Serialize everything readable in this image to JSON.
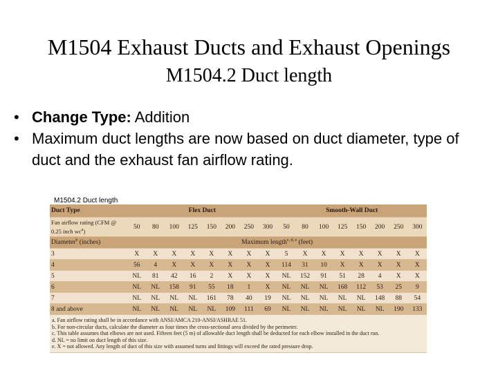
{
  "title": "M1504 Exhaust Ducts and Exhaust Openings",
  "subtitle": "M1504.2  Duct length",
  "bullets": [
    {
      "label": "Change Type:",
      "text": " Addition"
    },
    {
      "text": "Maximum duct lengths are now based on duct diameter, type of duct and the exhaust fan airflow rating."
    }
  ],
  "table": {
    "caption": "M1504.2 Duct length",
    "duct_type": "Duct Type",
    "groups": [
      "Flex Duct",
      "Smooth-Wall Duct"
    ],
    "airflow_label": {
      "text": "Fan airflow rating (CFM @ 0.25 inch wc",
      "sup": "a",
      "after": ")"
    },
    "airflow": [
      50,
      80,
      100,
      125,
      150,
      200,
      250,
      300,
      50,
      80,
      100,
      125,
      150,
      200,
      250,
      300
    ],
    "diameter_label": {
      "text": "Diameter",
      "sup": "b",
      "after": " (inches)"
    },
    "length_label": {
      "text": "Maximum length",
      "sup": "c, d, e",
      "after": " (feet)"
    },
    "rows": [
      {
        "diameter": 3,
        "values": [
          "X",
          "X",
          "X",
          "X",
          "X",
          "X",
          "X",
          "X",
          5,
          "X",
          "X",
          "X",
          "X",
          "X",
          "X",
          "X"
        ]
      },
      {
        "diameter": 4,
        "values": [
          56,
          4,
          "X",
          "X",
          "X",
          "X",
          "X",
          "X",
          114,
          31,
          10,
          "X",
          "X",
          "X",
          "X",
          "X"
        ]
      },
      {
        "diameter": 5,
        "values": [
          "NL",
          81,
          42,
          16,
          2,
          "X",
          "X",
          "X",
          "NL",
          152,
          91,
          51,
          28,
          4,
          "X",
          "X"
        ]
      },
      {
        "diameter": 6,
        "values": [
          "NL",
          "NL",
          158,
          91,
          55,
          18,
          1,
          "X",
          "NL",
          "NL",
          "NL",
          168,
          112,
          53,
          25,
          9
        ]
      },
      {
        "diameter": 7,
        "values": [
          "NL",
          "NL",
          "NL",
          "NL",
          161,
          78,
          40,
          19,
          "NL",
          "NL",
          "NL",
          "NL",
          "NL",
          148,
          88,
          54
        ]
      },
      {
        "diameter": "8 and above",
        "values": [
          "NL",
          "NL",
          "NL",
          "NL",
          "NL",
          109,
          111,
          69,
          "NL",
          "NL",
          "NL",
          "NL",
          "NL",
          "NL",
          190,
          133
        ]
      }
    ],
    "footnotes": [
      "a. Fan airflow rating shall be in accordance with ANSI/AMCA 210-ANSI/ASHRAE 51.",
      "b. For non-circular ducts, calculate the diameter as four times the cross-sectional area divided by the perimeter.",
      "c. This table assumes that elbows are not used. Fifteen feet (5 m) of allowable duct length shall be deducted for each elbow installed in the duct run.",
      "d. NL = no limit on duct length of this size.",
      "e. X = not allowed. Any length of duct of this size with assumed turns and fittings will exceed the rated pressure drop."
    ]
  }
}
